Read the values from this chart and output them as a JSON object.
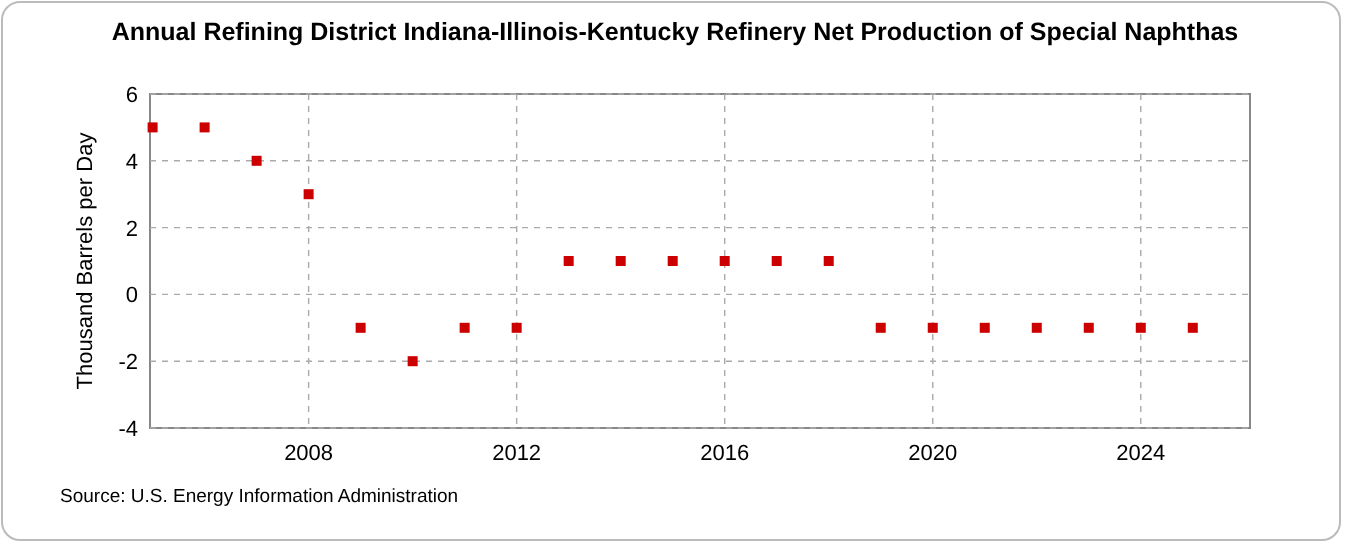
{
  "chart_data": {
    "type": "scatter",
    "title": "Annual Refining District Indiana-Illinois-Kentucky Refinery Net Production of Special Naphthas",
    "ylabel": "Thousand Barrels per Day",
    "annotations": [
      "Source: U.S. Energy Information Administration"
    ],
    "x": [
      2005,
      2006,
      2007,
      2008,
      2009,
      2010,
      2011,
      2012,
      2013,
      2014,
      2015,
      2016,
      2017,
      2018,
      2019,
      2020,
      2021,
      2022,
      2023,
      2024,
      2025
    ],
    "series": [
      {
        "color": "#cc0000",
        "values": [
          5,
          5,
          4,
          3,
          -1,
          -2,
          -1,
          -1,
          1,
          1,
          1,
          1,
          1,
          1,
          -1,
          -1,
          -1,
          -1,
          -1,
          -1,
          -1
        ]
      }
    ],
    "xlim": [
      2004.95,
      2026.1
    ],
    "xticks": [
      2008,
      2012,
      2016,
      2020,
      2024
    ],
    "ylim": [
      -4,
      6
    ],
    "yticks": [
      -4,
      -2,
      0,
      2,
      4,
      6
    ],
    "grid": true,
    "marker": "square"
  }
}
